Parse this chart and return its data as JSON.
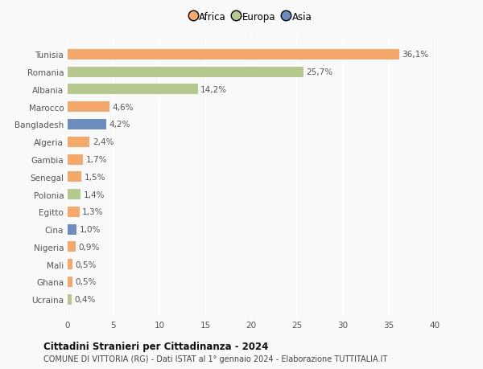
{
  "countries": [
    "Tunisia",
    "Romania",
    "Albania",
    "Marocco",
    "Bangladesh",
    "Algeria",
    "Gambia",
    "Senegal",
    "Polonia",
    "Egitto",
    "Cina",
    "Nigeria",
    "Mali",
    "Ghana",
    "Ucraina"
  ],
  "values": [
    36.1,
    25.7,
    14.2,
    4.6,
    4.2,
    2.4,
    1.7,
    1.5,
    1.4,
    1.3,
    1.0,
    0.9,
    0.5,
    0.5,
    0.4
  ],
  "labels": [
    "36,1%",
    "25,7%",
    "14,2%",
    "4,6%",
    "4,2%",
    "2,4%",
    "1,7%",
    "1,5%",
    "1,4%",
    "1,3%",
    "1,0%",
    "0,9%",
    "0,5%",
    "0,5%",
    "0,4%"
  ],
  "continents": [
    "Africa",
    "Europa",
    "Europa",
    "Africa",
    "Asia",
    "Africa",
    "Africa",
    "Africa",
    "Europa",
    "Africa",
    "Asia",
    "Africa",
    "Africa",
    "Africa",
    "Europa"
  ],
  "continent_colors": {
    "Africa": "#F4A96B",
    "Europa": "#B5C98E",
    "Asia": "#6B8DBF"
  },
  "legend_labels": [
    "Africa",
    "Europa",
    "Asia"
  ],
  "legend_colors": [
    "#F4A96B",
    "#B5C98E",
    "#6B8DBF"
  ],
  "xlim": [
    0,
    40
  ],
  "xticks": [
    0,
    5,
    10,
    15,
    20,
    25,
    30,
    35,
    40
  ],
  "title": "Cittadini Stranieri per Cittadinanza - 2024",
  "subtitle": "COMUNE DI VITTORIA (RG) - Dati ISTAT al 1° gennaio 2024 - Elaborazione TUTTITALIA.IT",
  "bg_color": "#f9f9f9",
  "grid_color": "#ffffff",
  "label_fontsize": 7.5,
  "tick_fontsize": 7.5,
  "bar_height": 0.6
}
